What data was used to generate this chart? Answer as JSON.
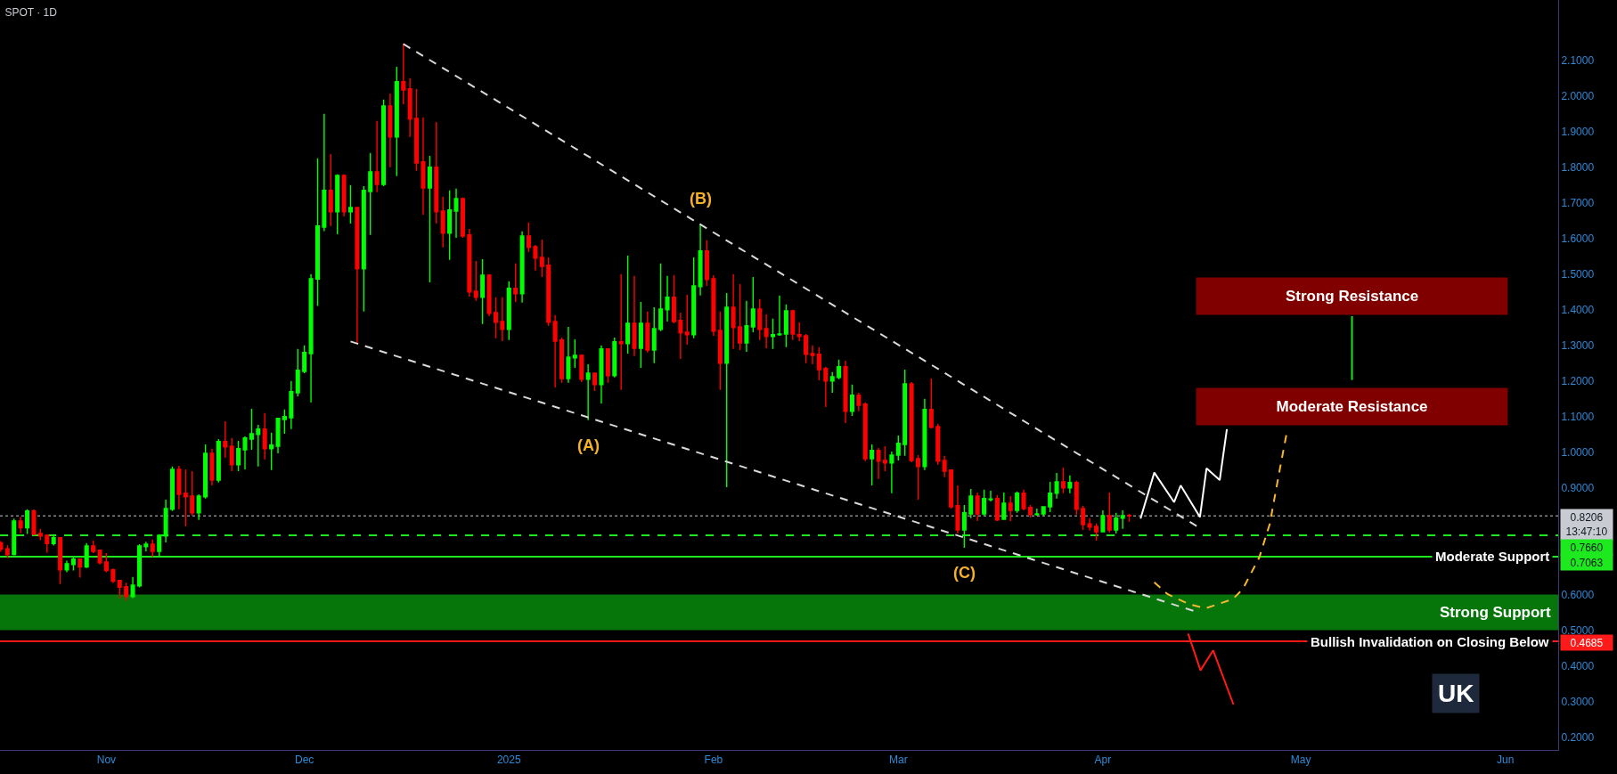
{
  "chart_data": {
    "type": "candlestick",
    "title": "SPOT · 1D",
    "x": [
      "2024-10-16",
      "2024-10-17",
      "2024-10-18",
      "2024-10-19",
      "2024-10-20",
      "2024-10-21",
      "2024-10-22",
      "2024-10-23",
      "2024-10-24",
      "2024-10-25",
      "2024-10-26",
      "2024-10-27",
      "2024-10-28",
      "2024-10-29",
      "2024-10-30",
      "2024-10-31",
      "2024-11-01",
      "2024-11-02",
      "2024-11-03",
      "2024-11-04",
      "2024-11-05",
      "2024-11-06",
      "2024-11-07",
      "2024-11-08",
      "2024-11-09",
      "2024-11-10",
      "2024-11-11",
      "2024-11-12",
      "2024-11-13",
      "2024-11-14",
      "2024-11-15",
      "2024-11-16",
      "2024-11-17",
      "2024-11-18",
      "2024-11-19",
      "2024-11-20",
      "2024-11-21",
      "2024-11-22",
      "2024-11-23",
      "2024-11-24",
      "2024-11-25",
      "2024-11-26",
      "2024-11-27",
      "2024-11-28",
      "2024-11-29",
      "2024-11-30",
      "2024-12-01",
      "2024-12-02",
      "2024-12-03",
      "2024-12-04",
      "2024-12-05",
      "2024-12-06",
      "2024-12-07",
      "2024-12-08",
      "2024-12-09",
      "2024-12-10",
      "2024-12-11",
      "2024-12-12",
      "2024-12-13",
      "2024-12-14",
      "2024-12-15",
      "2024-12-16",
      "2024-12-17",
      "2024-12-18",
      "2024-12-19",
      "2024-12-20",
      "2024-12-21",
      "2024-12-22",
      "2024-12-23",
      "2024-12-24",
      "2024-12-25",
      "2024-12-26",
      "2024-12-27",
      "2024-12-28",
      "2024-12-29",
      "2024-12-30",
      "2024-12-31",
      "2025-01-01",
      "2025-01-02",
      "2025-01-03",
      "2025-01-04",
      "2025-01-05",
      "2025-01-06",
      "2025-01-07",
      "2025-01-08",
      "2025-01-09",
      "2025-01-10",
      "2025-01-11",
      "2025-01-12",
      "2025-01-13",
      "2025-01-14",
      "2025-01-15",
      "2025-01-16",
      "2025-01-17",
      "2025-01-18",
      "2025-01-19",
      "2025-01-20",
      "2025-01-21",
      "2025-01-22",
      "2025-01-23",
      "2025-01-24",
      "2025-01-25",
      "2025-01-26",
      "2025-01-27",
      "2025-01-28",
      "2025-01-29",
      "2025-01-30",
      "2025-01-31",
      "2025-02-01",
      "2025-02-02",
      "2025-02-03",
      "2025-02-04",
      "2025-02-05",
      "2025-02-06",
      "2025-02-07",
      "2025-02-08",
      "2025-02-09",
      "2025-02-10",
      "2025-02-11",
      "2025-02-12",
      "2025-02-13",
      "2025-02-14",
      "2025-02-15",
      "2025-02-16",
      "2025-02-17",
      "2025-02-18",
      "2025-02-19",
      "2025-02-20",
      "2025-02-21",
      "2025-02-22",
      "2025-02-23",
      "2025-02-24",
      "2025-02-25",
      "2025-02-26",
      "2025-02-27",
      "2025-02-28",
      "2025-03-01",
      "2025-03-02",
      "2025-03-03",
      "2025-03-04",
      "2025-03-05",
      "2025-03-06",
      "2025-03-07",
      "2025-03-08",
      "2025-03-09",
      "2025-03-10",
      "2025-03-11",
      "2025-03-12",
      "2025-03-13",
      "2025-03-14",
      "2025-03-15",
      "2025-03-16",
      "2025-03-17",
      "2025-03-18",
      "2025-03-19",
      "2025-03-20",
      "2025-03-21",
      "2025-03-22",
      "2025-03-23",
      "2025-03-24",
      "2025-03-25",
      "2025-03-26",
      "2025-03-27",
      "2025-03-28",
      "2025-03-29",
      "2025-03-30",
      "2025-03-31",
      "2025-04-01",
      "2025-04-02",
      "2025-04-03",
      "2025-04-04",
      "2025-04-05"
    ],
    "ohlc": [
      [
        0.745,
        0.75,
        0.72,
        0.727
      ],
      [
        0.728,
        0.738,
        0.702,
        0.712
      ],
      [
        0.712,
        0.813,
        0.71,
        0.806
      ],
      [
        0.806,
        0.818,
        0.772,
        0.787
      ],
      [
        0.787,
        0.839,
        0.77,
        0.834
      ],
      [
        0.834,
        0.839,
        0.766,
        0.769
      ],
      [
        0.771,
        0.784,
        0.752,
        0.764
      ],
      [
        0.766,
        0.769,
        0.717,
        0.743
      ],
      [
        0.743,
        0.769,
        0.737,
        0.759
      ],
      [
        0.759,
        0.761,
        0.629,
        0.669
      ],
      [
        0.669,
        0.695,
        0.662,
        0.686
      ],
      [
        0.684,
        0.706,
        0.667,
        0.699
      ],
      [
        0.699,
        0.7,
        0.647,
        0.677
      ],
      [
        0.677,
        0.744,
        0.674,
        0.736
      ],
      [
        0.736,
        0.751,
        0.716,
        0.721
      ],
      [
        0.724,
        0.726,
        0.684,
        0.689
      ],
      [
        0.691,
        0.716,
        0.662,
        0.667
      ],
      [
        0.669,
        0.673,
        0.632,
        0.637
      ],
      [
        0.639,
        0.64,
        0.589,
        0.62
      ],
      [
        0.622,
        0.633,
        0.582,
        0.594
      ],
      [
        0.594,
        0.649,
        0.59,
        0.626
      ],
      [
        0.624,
        0.741,
        0.62,
        0.736
      ],
      [
        0.734,
        0.748,
        0.721,
        0.741
      ],
      [
        0.741,
        0.754,
        0.706,
        0.721
      ],
      [
        0.721,
        0.769,
        0.708,
        0.766
      ],
      [
        0.764,
        0.866,
        0.746,
        0.841
      ],
      [
        0.839,
        0.959,
        0.834,
        0.951
      ],
      [
        0.951,
        0.961,
        0.839,
        0.881
      ],
      [
        0.884,
        0.951,
        0.791,
        0.874
      ],
      [
        0.876,
        0.946,
        0.821,
        0.829
      ],
      [
        0.829,
        0.881,
        0.809,
        0.876
      ],
      [
        0.874,
        1.021,
        0.869,
        0.996
      ],
      [
        0.996,
        1.009,
        0.906,
        0.921
      ],
      [
        0.921,
        1.036,
        0.914,
        1.029
      ],
      [
        1.029,
        1.086,
        0.984,
        1.014
      ],
      [
        1.016,
        1.039,
        0.946,
        0.964
      ],
      [
        0.964,
        1.031,
        0.946,
        1.009
      ],
      [
        1.006,
        1.044,
        0.951,
        1.039
      ],
      [
        1.036,
        1.121,
        1.006,
        1.051
      ],
      [
        1.049,
        1.076,
        0.959,
        1.064
      ],
      [
        1.064,
        1.109,
        0.979,
        1.009
      ],
      [
        1.009,
        1.054,
        0.949,
        1.019
      ],
      [
        1.016,
        1.094,
        0.996,
        1.094
      ],
      [
        1.091,
        1.119,
        1.051,
        1.099
      ],
      [
        1.096,
        1.199,
        1.064,
        1.169
      ],
      [
        1.166,
        1.289,
        1.156,
        1.229
      ],
      [
        1.226,
        1.299,
        1.221,
        1.279
      ],
      [
        1.276,
        1.499,
        1.139,
        1.486
      ],
      [
        1.485,
        1.824,
        1.41,
        1.634
      ],
      [
        1.631,
        1.949,
        1.62,
        1.734
      ],
      [
        1.734,
        1.836,
        1.634,
        1.674
      ],
      [
        1.674,
        1.779,
        1.611,
        1.776
      ],
      [
        1.776,
        1.779,
        1.661,
        1.674
      ],
      [
        1.674,
        1.749,
        1.641,
        1.686
      ],
      [
        1.686,
        1.686,
        1.306,
        1.514
      ],
      [
        1.514,
        1.746,
        1.394,
        1.734
      ],
      [
        1.731,
        1.839,
        1.609,
        1.786
      ],
      [
        1.786,
        1.929,
        1.729,
        1.751
      ],
      [
        1.751,
        1.989,
        1.746,
        1.971
      ],
      [
        1.971,
        2.006,
        1.799,
        1.884
      ],
      [
        1.884,
        2.081,
        1.774,
        2.039
      ],
      [
        2.039,
        2.146,
        1.976,
        2.016
      ],
      [
        2.019,
        2.049,
        1.884,
        1.934
      ],
      [
        1.936,
        2.019,
        1.789,
        1.811
      ],
      [
        1.814,
        1.939,
        1.666,
        1.741
      ],
      [
        1.741,
        1.831,
        1.476,
        1.799
      ],
      [
        1.799,
        1.926,
        1.641,
        1.674
      ],
      [
        1.676,
        1.716,
        1.574,
        1.614
      ],
      [
        1.614,
        1.734,
        1.539,
        1.679
      ],
      [
        1.676,
        1.739,
        1.601,
        1.711
      ],
      [
        1.711,
        1.714,
        1.601,
        1.606
      ],
      [
        1.609,
        1.626,
        1.436,
        1.449
      ],
      [
        1.451,
        1.536,
        1.424,
        1.434
      ],
      [
        1.434,
        1.541,
        1.359,
        1.496
      ],
      [
        1.496,
        1.499,
        1.381,
        1.389
      ],
      [
        1.391,
        1.434,
        1.319,
        1.364
      ],
      [
        1.366,
        1.434,
        1.311,
        1.344
      ],
      [
        1.344,
        1.479,
        1.314,
        1.459
      ],
      [
        1.459,
        1.529,
        1.421,
        1.444
      ],
      [
        1.444,
        1.619,
        1.419,
        1.606
      ],
      [
        1.606,
        1.644,
        1.561,
        1.574
      ],
      [
        1.576,
        1.581,
        1.509,
        1.544
      ],
      [
        1.546,
        1.596,
        1.491,
        1.521
      ],
      [
        1.524,
        1.546,
        1.354,
        1.364
      ],
      [
        1.366,
        1.384,
        1.181,
        1.311
      ],
      [
        1.314,
        1.321,
        1.194,
        1.206
      ],
      [
        1.206,
        1.351,
        1.194,
        1.266
      ],
      [
        1.264,
        1.316,
        1.236,
        1.271
      ],
      [
        1.271,
        1.274,
        1.196,
        1.204
      ],
      [
        1.204,
        1.246,
        1.089,
        1.221
      ],
      [
        1.221,
        1.221,
        1.171,
        1.189
      ],
      [
        1.189,
        1.299,
        1.136,
        1.289
      ],
      [
        1.289,
        1.289,
        1.194,
        1.214
      ],
      [
        1.214,
        1.321,
        1.209,
        1.309
      ],
      [
        1.309,
        1.499,
        1.174,
        1.304
      ],
      [
        1.304,
        1.551,
        1.276,
        1.361
      ],
      [
        1.361,
        1.494,
        1.269,
        1.291
      ],
      [
        1.291,
        1.421,
        1.236,
        1.361
      ],
      [
        1.361,
        1.394,
        1.279,
        1.286
      ],
      [
        1.286,
        1.406,
        1.249,
        1.346
      ],
      [
        1.344,
        1.529,
        1.339,
        1.401
      ],
      [
        1.399,
        1.494,
        1.366,
        1.434
      ],
      [
        1.434,
        1.496,
        1.361,
        1.366
      ],
      [
        1.369,
        1.391,
        1.261,
        1.334
      ],
      [
        1.336,
        1.441,
        1.301,
        1.329
      ],
      [
        1.329,
        1.546,
        1.319,
        1.466
      ],
      [
        1.464,
        1.641,
        1.439,
        1.564
      ],
      [
        1.564,
        1.594,
        1.466,
        1.484
      ],
      [
        1.486,
        1.496,
        1.326,
        1.339
      ],
      [
        1.341,
        1.394,
        1.174,
        1.249
      ],
      [
        1.249,
        1.446,
        0.901,
        1.406
      ],
      [
        1.406,
        1.499,
        1.289,
        1.349
      ],
      [
        1.351,
        1.471,
        1.286,
        1.306
      ],
      [
        1.306,
        1.424,
        1.281,
        1.354
      ],
      [
        1.351,
        1.491,
        1.336,
        1.401
      ],
      [
        1.401,
        1.429,
        1.314,
        1.344
      ],
      [
        1.346,
        1.386,
        1.291,
        1.324
      ],
      [
        1.324,
        1.374,
        1.289,
        1.329
      ],
      [
        1.329,
        1.439,
        1.326,
        1.331
      ],
      [
        1.331,
        1.414,
        1.294,
        1.396
      ],
      [
        1.396,
        1.399,
        1.314,
        1.331
      ],
      [
        1.329,
        1.364,
        1.311,
        1.324
      ],
      [
        1.326,
        1.331,
        1.249,
        1.274
      ],
      [
        1.276,
        1.299,
        1.246,
        1.271
      ],
      [
        1.274,
        1.294,
        1.201,
        1.231
      ],
      [
        1.234,
        1.239,
        1.126,
        1.199
      ],
      [
        1.199,
        1.224,
        1.166,
        1.211
      ],
      [
        1.209,
        1.259,
        1.204,
        1.239
      ],
      [
        1.239,
        1.256,
        1.081,
        1.114
      ],
      [
        1.114,
        1.189,
        1.101,
        1.159
      ],
      [
        1.159,
        1.166,
        1.114,
        1.131
      ],
      [
        1.134,
        1.139,
        0.974,
        0.981
      ],
      [
        0.981,
        1.021,
        0.906,
        1.004
      ],
      [
        1.004,
        1.011,
        0.924,
        0.974
      ],
      [
        0.976,
        1.016,
        0.946,
        0.969
      ],
      [
        0.969,
        1.001,
        0.884,
        0.991
      ],
      [
        0.991,
        1.046,
        0.976,
        1.024
      ],
      [
        1.021,
        1.231,
        0.989,
        1.191
      ],
      [
        1.191,
        1.196,
        0.971,
        0.976
      ],
      [
        0.981,
        0.991,
        0.866,
        0.959
      ],
      [
        0.959,
        1.149,
        0.949,
        1.119
      ],
      [
        1.119,
        1.206,
        1.066,
        1.069
      ],
      [
        1.071,
        1.079,
        0.964,
        0.974
      ],
      [
        0.976,
        0.989,
        0.929,
        0.946
      ],
      [
        0.949,
        0.951,
        0.841,
        0.846
      ],
      [
        0.849,
        0.906,
        0.771,
        0.781
      ],
      [
        0.781,
        0.851,
        0.731,
        0.829
      ],
      [
        0.826,
        0.896,
        0.814,
        0.876
      ],
      [
        0.876,
        0.886,
        0.806,
        0.826
      ],
      [
        0.826,
        0.894,
        0.821,
        0.869
      ],
      [
        0.866,
        0.891,
        0.861,
        0.868
      ],
      [
        0.869,
        0.879,
        0.806,
        0.809
      ],
      [
        0.811,
        0.886,
        0.81,
        0.856
      ],
      [
        0.856,
        0.876,
        0.806,
        0.836
      ],
      [
        0.836,
        0.889,
        0.829,
        0.884
      ],
      [
        0.884,
        0.894,
        0.836,
        0.841
      ],
      [
        0.844,
        0.851,
        0.816,
        0.824
      ],
      [
        0.824,
        0.841,
        0.821,
        0.826
      ],
      [
        0.826,
        0.846,
        0.821,
        0.846
      ],
      [
        0.846,
        0.916,
        0.831,
        0.884
      ],
      [
        0.884,
        0.941,
        0.869,
        0.916
      ],
      [
        0.916,
        0.956,
        0.884,
        0.899
      ],
      [
        0.899,
        0.934,
        0.884,
        0.914
      ],
      [
        0.914,
        0.919,
        0.824,
        0.839
      ],
      [
        0.841,
        0.849,
        0.781,
        0.796
      ],
      [
        0.798,
        0.814,
        0.779,
        0.789
      ],
      [
        0.791,
        0.799,
        0.751,
        0.776
      ],
      [
        0.776,
        0.836,
        0.774,
        0.821
      ],
      [
        0.821,
        0.886,
        0.774,
        0.781
      ],
      [
        0.781,
        0.829,
        0.771,
        0.814
      ],
      [
        0.814,
        0.836,
        0.784,
        0.821
      ],
      [
        0.822,
        0.826,
        0.804,
        0.8206
      ]
    ],
    "colors": [
      "#ff0000",
      "#ff0000",
      "#00ff00",
      "#ff0000",
      "#00ff00",
      "#ff0000",
      "#ff0000",
      "#ff0000",
      "#00ff00",
      "#ff0000",
      "#00ff00",
      "#00ff00",
      "#ff0000",
      "#00ff00",
      "#ff0000",
      "#ff0000",
      "#ff0000",
      "#ff0000",
      "#ff0000",
      "#ff0000",
      "#00ff00",
      "#00ff00",
      "#00ff00",
      "#ff0000",
      "#00ff00",
      "#00ff00",
      "#00ff00",
      "#ff0000",
      "#ff0000",
      "#ff0000",
      "#00ff00",
      "#00ff00",
      "#ff0000",
      "#00ff00",
      "#ff0000",
      "#ff0000",
      "#00ff00",
      "#00ff00",
      "#00ff00",
      "#00ff00",
      "#ff0000",
      "#00ff00",
      "#00ff00",
      "#00ff00",
      "#00ff00",
      "#00ff00",
      "#00ff00",
      "#00ff00",
      "#00ff00",
      "#00ff00",
      "#ff0000",
      "#00ff00",
      "#ff0000",
      "#00ff00",
      "#ff0000",
      "#00ff00",
      "#00ff00",
      "#ff0000",
      "#00ff00",
      "#ff0000",
      "#00ff00",
      "#ff0000",
      "#ff0000",
      "#ff0000",
      "#ff0000",
      "#00ff00",
      "#ff0000",
      "#ff0000",
      "#00ff00",
      "#00ff00",
      "#ff0000",
      "#ff0000",
      "#ff0000",
      "#00ff00",
      "#ff0000",
      "#ff0000",
      "#ff0000",
      "#00ff00",
      "#ff0000",
      "#00ff00",
      "#ff0000",
      "#ff0000",
      "#ff0000",
      "#ff0000",
      "#ff0000",
      "#ff0000",
      "#00ff00",
      "#00ff00",
      "#ff0000",
      "#00ff00",
      "#ff0000",
      "#00ff00",
      "#ff0000",
      "#00ff00",
      "#ff0000",
      "#00ff00",
      "#ff0000",
      "#00ff00",
      "#ff0000",
      "#00ff00",
      "#00ff00",
      "#00ff00",
      "#ff0000",
      "#ff0000",
      "#ff0000",
      "#00ff00",
      "#00ff00",
      "#ff0000",
      "#ff0000",
      "#ff0000",
      "#00ff00",
      "#ff0000",
      "#ff0000",
      "#00ff00",
      "#00ff00",
      "#ff0000",
      "#ff0000",
      "#00ff00",
      "#00ff00",
      "#00ff00",
      "#ff0000",
      "#ff0000",
      "#ff0000",
      "#ff0000",
      "#ff0000",
      "#ff0000",
      "#00ff00",
      "#00ff00",
      "#ff0000",
      "#00ff00",
      "#ff0000",
      "#ff0000",
      "#00ff00",
      "#ff0000",
      "#ff0000",
      "#00ff00",
      "#00ff00",
      "#00ff00",
      "#ff0000",
      "#ff0000",
      "#00ff00",
      "#ff0000",
      "#ff0000",
      "#ff0000",
      "#ff0000",
      "#ff0000",
      "#00ff00",
      "#00ff00",
      "#ff0000",
      "#00ff00",
      "#00ff00",
      "#ff0000",
      "#00ff00",
      "#ff0000",
      "#00ff00",
      "#ff0000",
      "#ff0000",
      "#00ff00",
      "#00ff00",
      "#00ff00",
      "#00ff00",
      "#ff0000",
      "#00ff00",
      "#ff0000",
      "#ff0000",
      "#ff0000",
      "#ff0000",
      "#00ff00",
      "#ff0000",
      "#00ff00",
      "#00ff00",
      "#ff0000"
    ],
    "series": [
      {
        "type": "bar",
        "name": "Strong Resistance",
        "color": "#800000",
        "x": [
          "2025-05-08T18:00"
        ],
        "base": [
          1.385
        ],
        "values": [
          0.105
        ]
      },
      {
        "type": "bar",
        "name": "Moderate Resistance",
        "color": "#800000",
        "x": [
          "2025-05-08T18:00"
        ],
        "base": [
          1.075
        ],
        "values": [
          0.105
        ]
      },
      {
        "type": "line",
        "color": "#d9d9d9",
        "line_style": "dashed",
        "x": [
          "2024-12-16",
          "2025-04-15T05:00"
        ],
        "values": [
          2.145,
          0.792
        ]
      },
      {
        "type": "line",
        "color": "#d9d9d9",
        "line_style": "dashed",
        "x": [
          "2024-12-08",
          "2025-04-14T17:00"
        ],
        "values": [
          1.31,
          0.554
        ]
      },
      {
        "type": "line",
        "color": "#ffffff",
        "line_style": "solid",
        "x": [
          "2025-04-06T17:00",
          "2025-04-08T19:00",
          "2025-04-11T19:00",
          "2025-04-12T19:00",
          "2025-04-15T17:00",
          "2025-04-16T17:00",
          "2025-04-18T17:00",
          "2025-04-19T19:00"
        ],
        "values": [
          0.813,
          0.942,
          0.859,
          0.906,
          0.817,
          0.954,
          0.921,
          1.064
        ]
      },
      {
        "type": "line",
        "color": "#f5b82e",
        "line_style": "dashed",
        "x": [
          "2025-04-08T19:00",
          "2025-04-10T19:00",
          "2025-04-14",
          "2025-04-16T14:00",
          "2025-04-20T17:00",
          "2025-04-22T05:00",
          "2025-04-24T17:00",
          "2025-04-26T07:00",
          "2025-04-27T19:00",
          "2025-04-28T19:00"
        ],
        "values": [
          0.634,
          0.601,
          0.573,
          0.561,
          0.587,
          0.615,
          0.704,
          0.798,
          0.949,
          1.047
        ]
      },
      {
        "type": "line",
        "color": "#ff1a1a",
        "line_style": "solid",
        "x": [
          "2025-04-13T22:00",
          "2025-04-15T19:00",
          "2025-04-17T17:00",
          "2025-04-20T19:00"
        ],
        "values": [
          0.49,
          0.387,
          0.443,
          0.291
        ]
      },
      {
        "type": "line",
        "color": "#19e619",
        "line_style": "solid",
        "x": [
          "2025-05-08T18:00",
          "2025-05-08T18:00"
        ],
        "values": [
          1.202,
          1.381
        ]
      }
    ],
    "xlim": [
      "2024-10-15T21:00",
      "2025-06-09"
    ],
    "xticks": [
      {
        "value": "2024-11-01",
        "label": "Nov"
      },
      {
        "value": "2024-12-01",
        "label": "Dec"
      },
      {
        "value": "2025-01-01",
        "label": "2025"
      },
      {
        "value": "2025-02-01",
        "label": "Feb"
      },
      {
        "value": "2025-03-01",
        "label": "Mar"
      },
      {
        "value": "2025-04-01",
        "label": "Apr"
      },
      {
        "value": "2025-05-01",
        "label": "May"
      },
      {
        "value": "2025-06-01",
        "label": "Jun"
      }
    ],
    "ylim": [
      0.1635,
      2.2685
    ],
    "yticks": [
      {
        "value": 0.2,
        "label": "0.2000"
      },
      {
        "value": 0.3,
        "label": "0.3000"
      },
      {
        "value": 0.4,
        "label": "0.4000"
      },
      {
        "value": 0.5,
        "label": "0.5000"
      },
      {
        "value": 0.6,
        "label": "0.6000"
      },
      {
        "value": 0.9,
        "label": "0.9000"
      },
      {
        "value": 1.0,
        "label": "1.0000"
      },
      {
        "value": 1.1,
        "label": "1.1000"
      },
      {
        "value": 1.2,
        "label": "1.2000"
      },
      {
        "value": 1.3,
        "label": "1.3000"
      },
      {
        "value": 1.4,
        "label": "1.4000"
      },
      {
        "value": 1.5,
        "label": "1.5000"
      },
      {
        "value": 1.6,
        "label": "1.6000"
      },
      {
        "value": 1.7,
        "label": "1.7000"
      },
      {
        "value": 1.8,
        "label": "1.8000"
      },
      {
        "value": 1.9,
        "label": "1.9000"
      },
      {
        "value": 2.0,
        "label": "2.0000"
      },
      {
        "value": 2.1,
        "label": "2.1000"
      }
    ],
    "ref_lines": [
      {
        "axis": "y",
        "value": 0.8206,
        "label": "0.8206\n13:47:10",
        "color": "#c8cbd2",
        "line_style": "dotted"
      },
      {
        "axis": "y",
        "value": 0.766,
        "label": "0.7660",
        "color": "#1ee81e",
        "line_style": "dashed"
      },
      {
        "axis": "y",
        "value": 0.7063,
        "label": "0.7063",
        "color": "#1ee81e",
        "line_style": "solid"
      },
      {
        "axis": "y",
        "value": 0.4685,
        "label": "0.4685",
        "color": "#ff1a1a",
        "line_style": "solid"
      }
    ],
    "bands": [
      {
        "axis": "y",
        "from": 0.5,
        "to": 0.6,
        "label": "Strong Support",
        "color": "#06750a"
      }
    ],
    "annotations": [
      {
        "text": "(A)",
        "x": "2025-01-13",
        "y": 1.089
      },
      {
        "text": "(B)",
        "x": "2025-01-30",
        "y": 1.641
      },
      {
        "text": "(C)",
        "x": "2025-03-11",
        "y": 0.731
      },
      {
        "text": "Moderate Support",
        "x": "2025-05-30",
        "y": 0.7063
      },
      {
        "text": "Bullish Invalidation on Closing Below",
        "x": "2025-05-20T14:00",
        "y": 0.4685
      },
      "UK"
    ]
  }
}
